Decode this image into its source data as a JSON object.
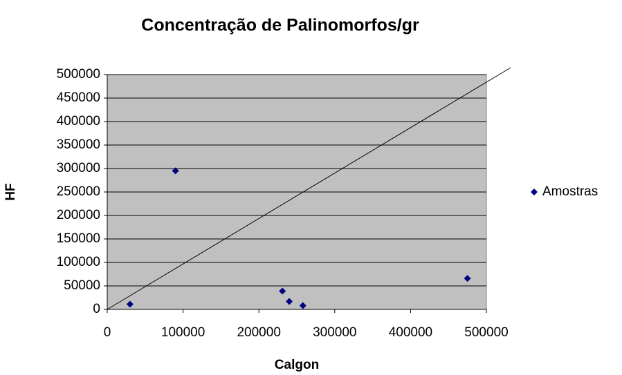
{
  "chart_data": {
    "type": "scatter",
    "title": "Concentração de Palinomorfos/gr",
    "xlabel": "Calgon",
    "ylabel": "HF",
    "series": [
      {
        "name": "Amostras",
        "color": "#000080",
        "x": [
          30000,
          90000,
          231000,
          240000,
          258000,
          475000
        ],
        "values": [
          11000,
          295000,
          39000,
          17000,
          8000,
          66000
        ]
      }
    ],
    "xlim": [
      0,
      500000
    ],
    "xticks": [
      0,
      100000,
      200000,
      300000,
      400000,
      500000
    ],
    "ylim": [
      0,
      500000
    ],
    "yticks": [
      0,
      50000,
      100000,
      150000,
      200000,
      250000,
      300000,
      350000,
      400000,
      450000,
      500000
    ],
    "grid": true,
    "legend": "right"
  }
}
